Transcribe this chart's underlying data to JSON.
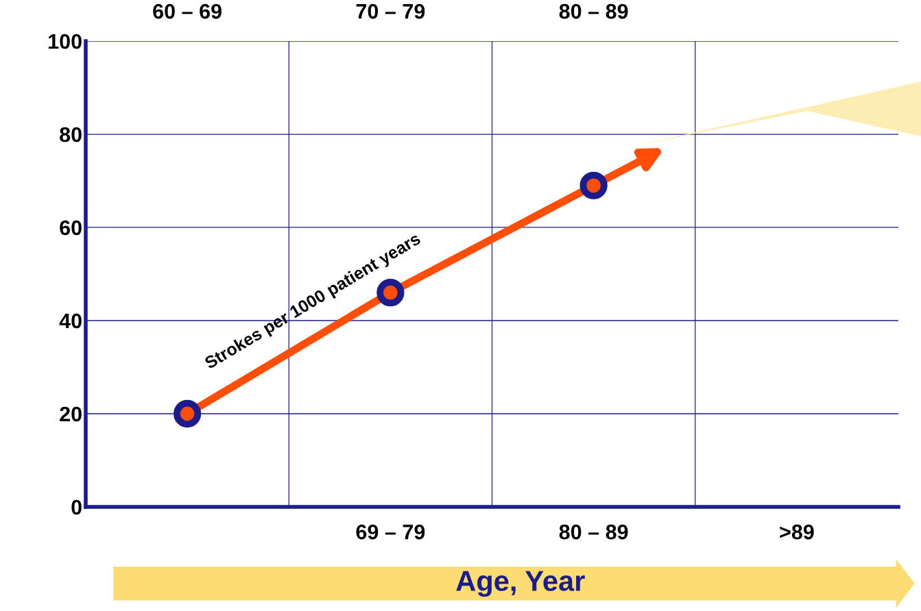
{
  "chart_data": {
    "type": "line",
    "xlabel": "Age, Year",
    "categories": [
      null,
      "69 – 79",
      "80 – 89",
      ">89"
    ],
    "series": [
      {
        "color": "#ff4e0a",
        "values": [
          20,
          46,
          69,
          null
        ]
      }
    ],
    "ylim": [
      0,
      100
    ],
    "yticks": [
      0,
      20,
      40,
      60,
      80,
      100
    ],
    "annotations": [
      "60 – 69",
      "70 – 79",
      "80 – 89",
      "Strokes per 1000 patient years"
    ],
    "grid": true,
    "marker": "circle",
    "line_style": "solid"
  }
}
